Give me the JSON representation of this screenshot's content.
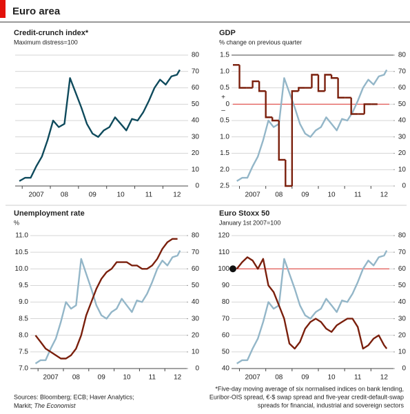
{
  "header": {
    "title": "Euro area"
  },
  "chart_data": [
    {
      "type": "line",
      "title": "Credit-crunch index*",
      "subtitle": "Maximum distress=100",
      "y_axis_side": "right",
      "x": [
        2006.9,
        2007.1,
        2007.3,
        2007.5,
        2007.7,
        2007.9,
        2008.1,
        2008.3,
        2008.5,
        2008.7,
        2008.9,
        2009.1,
        2009.3,
        2009.5,
        2009.7,
        2009.9,
        2010.1,
        2010.3,
        2010.5,
        2010.7,
        2010.9,
        2011.1,
        2011.3,
        2011.5,
        2011.7,
        2011.9,
        2012.1,
        2012.3,
        2012.5,
        2012.6
      ],
      "xlim": [
        2006.75,
        2012.7
      ],
      "xticks": [
        {
          "value": 2007.5,
          "label": "2007"
        },
        {
          "value": 2008.5,
          "label": "08"
        },
        {
          "value": 2009.5,
          "label": "09"
        },
        {
          "value": 2010.5,
          "label": "10"
        },
        {
          "value": 2011.5,
          "label": "11"
        },
        {
          "value": 2012.5,
          "label": "12"
        }
      ],
      "ylim": [
        0,
        80
      ],
      "yticks": [
        0,
        10,
        20,
        30,
        40,
        50,
        60,
        70,
        80
      ],
      "grid": true,
      "series": [
        {
          "color": "#0e4a5c",
          "values": [
            3,
            5,
            5,
            12,
            18,
            28,
            40,
            36,
            38,
            66,
            57,
            48,
            38,
            32,
            30,
            34,
            36,
            42,
            38,
            34,
            41,
            40,
            45,
            52,
            60,
            65,
            62,
            67,
            68,
            71
          ]
        }
      ]
    },
    {
      "type": "line",
      "title": "GDP",
      "subtitle": "% change on previous quarter",
      "x": [
        2006.9,
        2007.1,
        2007.3,
        2007.5,
        2007.7,
        2007.9,
        2008.1,
        2008.3,
        2008.5,
        2008.7,
        2008.9,
        2009.1,
        2009.3,
        2009.5,
        2009.7,
        2009.9,
        2010.1,
        2010.3,
        2010.5,
        2010.7,
        2010.9,
        2011.1,
        2011.3,
        2011.5,
        2011.7,
        2011.9,
        2012.1,
        2012.3,
        2012.5,
        2012.6
      ],
      "xlim": [
        2006.75,
        2012.7
      ],
      "xticks": [
        {
          "value": 2007.5,
          "label": "2007"
        },
        {
          "value": 2008.5,
          "label": "08"
        },
        {
          "value": 2009.5,
          "label": "09"
        },
        {
          "value": 2010.5,
          "label": "10"
        },
        {
          "value": 2011.5,
          "label": "11"
        },
        {
          "value": 2012.5,
          "label": "12"
        }
      ],
      "ylim": [
        -2.5,
        1.5
      ],
      "yticks": [
        1.5,
        {
          "value": 1,
          "label": "1.0"
        },
        0.5,
        0,
        {
          "value": -0.5,
          "label": "0.5"
        },
        {
          "value": -1,
          "label": "1.0"
        },
        {
          "value": -1.5,
          "label": "1.5"
        },
        {
          "value": -2,
          "label": "2.0"
        },
        {
          "value": -2.5,
          "label": "2.5"
        }
      ],
      "sign_labels": [
        "+",
        "–"
      ],
      "ref_line": 0,
      "ref_color": "#e0302a",
      "y2lim": [
        0,
        80
      ],
      "y2ticks": [
        0,
        10,
        20,
        30,
        40,
        50,
        60,
        70,
        80
      ],
      "grid": true,
      "series": [
        {
          "color": "#93b6c8",
          "axis": "y2",
          "values": [
            3,
            5,
            5,
            12,
            18,
            28,
            40,
            36,
            38,
            66,
            57,
            48,
            38,
            32,
            30,
            34,
            36,
            42,
            38,
            34,
            41,
            40,
            45,
            52,
            60,
            65,
            62,
            67,
            68,
            71
          ]
        },
        {
          "color": "#7a1f0c",
          "step": true,
          "x": [
            2006.75,
            2007,
            2007.25,
            2007.5,
            2007.75,
            2008,
            2008.25,
            2008.5,
            2008.75,
            2009,
            2009.25,
            2009.5,
            2009.75,
            2010,
            2010.25,
            2010.5,
            2010.75,
            2011,
            2011.25,
            2011.5,
            2011.75,
            2012
          ],
          "values": [
            1.2,
            0.5,
            0.5,
            0.7,
            0.4,
            -0.4,
            -0.5,
            -1.7,
            -2.5,
            0.4,
            0.5,
            0.5,
            0.9,
            0.4,
            0.9,
            0.8,
            0.2,
            0.2,
            -0.3,
            -0.3,
            0.0,
            0.0
          ]
        }
      ]
    },
    {
      "type": "line",
      "title": "Unemployment rate",
      "subtitle": "%",
      "x": [
        2006.9,
        2007.1,
        2007.3,
        2007.5,
        2007.7,
        2007.9,
        2008.1,
        2008.3,
        2008.5,
        2008.7,
        2008.9,
        2009.1,
        2009.3,
        2009.5,
        2009.7,
        2009.9,
        2010.1,
        2010.3,
        2010.5,
        2010.7,
        2010.9,
        2011.1,
        2011.3,
        2011.5,
        2011.7,
        2011.9,
        2012.1,
        2012.3,
        2012.5,
        2012.6
      ],
      "xlim": [
        2006.75,
        2012.7
      ],
      "xticks": [
        {
          "value": 2007.5,
          "label": "2007"
        },
        {
          "value": 2008.5,
          "label": "08"
        },
        {
          "value": 2009.5,
          "label": "09"
        },
        {
          "value": 2010.5,
          "label": "10"
        },
        {
          "value": 2011.5,
          "label": "11"
        },
        {
          "value": 2012.5,
          "label": "12"
        }
      ],
      "ylim": [
        7,
        11
      ],
      "yticks": [
        {
          "value": 7,
          "label": "7.0"
        },
        7.5,
        {
          "value": 8,
          "label": "8.0"
        },
        8.5,
        {
          "value": 9,
          "label": "9.0"
        },
        9.5,
        {
          "value": 10,
          "label": "10.0"
        },
        10.5,
        {
          "value": 11,
          "label": "11.0"
        }
      ],
      "y2lim": [
        0,
        80
      ],
      "y2ticks": [
        0,
        10,
        20,
        30,
        40,
        50,
        60,
        70,
        80
      ],
      "grid": true,
      "series": [
        {
          "color": "#93b6c8",
          "axis": "y2",
          "values": [
            3,
            5,
            5,
            12,
            18,
            28,
            40,
            36,
            38,
            66,
            57,
            48,
            38,
            32,
            30,
            34,
            36,
            42,
            38,
            34,
            41,
            40,
            45,
            52,
            60,
            65,
            62,
            67,
            68,
            71
          ]
        },
        {
          "color": "#7a1f0c",
          "values": [
            8.0,
            7.8,
            7.6,
            7.5,
            7.4,
            7.3,
            7.3,
            7.4,
            7.6,
            8.0,
            8.6,
            9.0,
            9.4,
            9.7,
            9.9,
            10.0,
            10.2,
            10.2,
            10.2,
            10.1,
            10.1,
            10.0,
            10.0,
            10.1,
            10.3,
            10.6,
            10.8,
            10.9,
            10.9,
            null
          ]
        }
      ]
    },
    {
      "type": "line",
      "title": "Euro Stoxx 50",
      "subtitle": "January 1st 2007=100",
      "x": [
        2006.9,
        2007.1,
        2007.3,
        2007.5,
        2007.7,
        2007.9,
        2008.1,
        2008.3,
        2008.5,
        2008.7,
        2008.9,
        2009.1,
        2009.3,
        2009.5,
        2009.7,
        2009.9,
        2010.1,
        2010.3,
        2010.5,
        2010.7,
        2010.9,
        2011.1,
        2011.3,
        2011.5,
        2011.7,
        2011.9,
        2012.1,
        2012.3,
        2012.5,
        2012.6
      ],
      "xlim": [
        2006.75,
        2012.7
      ],
      "xticks": [
        {
          "value": 2007.5,
          "label": "2007"
        },
        {
          "value": 2008.5,
          "label": "08"
        },
        {
          "value": 2009.5,
          "label": "09"
        },
        {
          "value": 2010.5,
          "label": "10"
        },
        {
          "value": 2011.5,
          "label": "11"
        },
        {
          "value": 2012.5,
          "label": "12"
        }
      ],
      "ylim": [
        40,
        120
      ],
      "yticks": [
        40,
        50,
        60,
        70,
        80,
        90,
        100,
        110,
        120
      ],
      "ref_line": 100,
      "ref_color": "#e0302a",
      "ref_marker": true,
      "y2lim": [
        0,
        80
      ],
      "y2ticks": [
        0,
        10,
        20,
        30,
        40,
        50,
        60,
        70,
        80
      ],
      "grid": true,
      "series": [
        {
          "color": "#93b6c8",
          "axis": "y2",
          "values": [
            3,
            5,
            5,
            12,
            18,
            28,
            40,
            36,
            38,
            66,
            57,
            48,
            38,
            32,
            30,
            34,
            36,
            42,
            38,
            34,
            41,
            40,
            45,
            52,
            60,
            65,
            62,
            67,
            68,
            71
          ]
        },
        {
          "color": "#7a1f0c",
          "values": [
            100,
            104,
            107,
            105,
            100,
            106,
            90,
            86,
            78,
            70,
            55,
            52,
            56,
            64,
            68,
            70,
            68,
            64,
            62,
            66,
            68,
            70,
            70,
            65,
            52,
            54,
            58,
            60,
            54,
            52
          ]
        }
      ]
    }
  ],
  "footer": {
    "sources": [
      "Sources: Bloomberg; ECB; Haver Analytics;",
      "Markit; ",
      "The Economist"
    ],
    "note": [
      "*Five-day moving average of six normalised indices on bank lending,",
      "Euribor-OIS spread, €-$ swap spread and five-year credit-default-swap",
      "spreads for financial, industrial and sovereign sectors"
    ]
  }
}
